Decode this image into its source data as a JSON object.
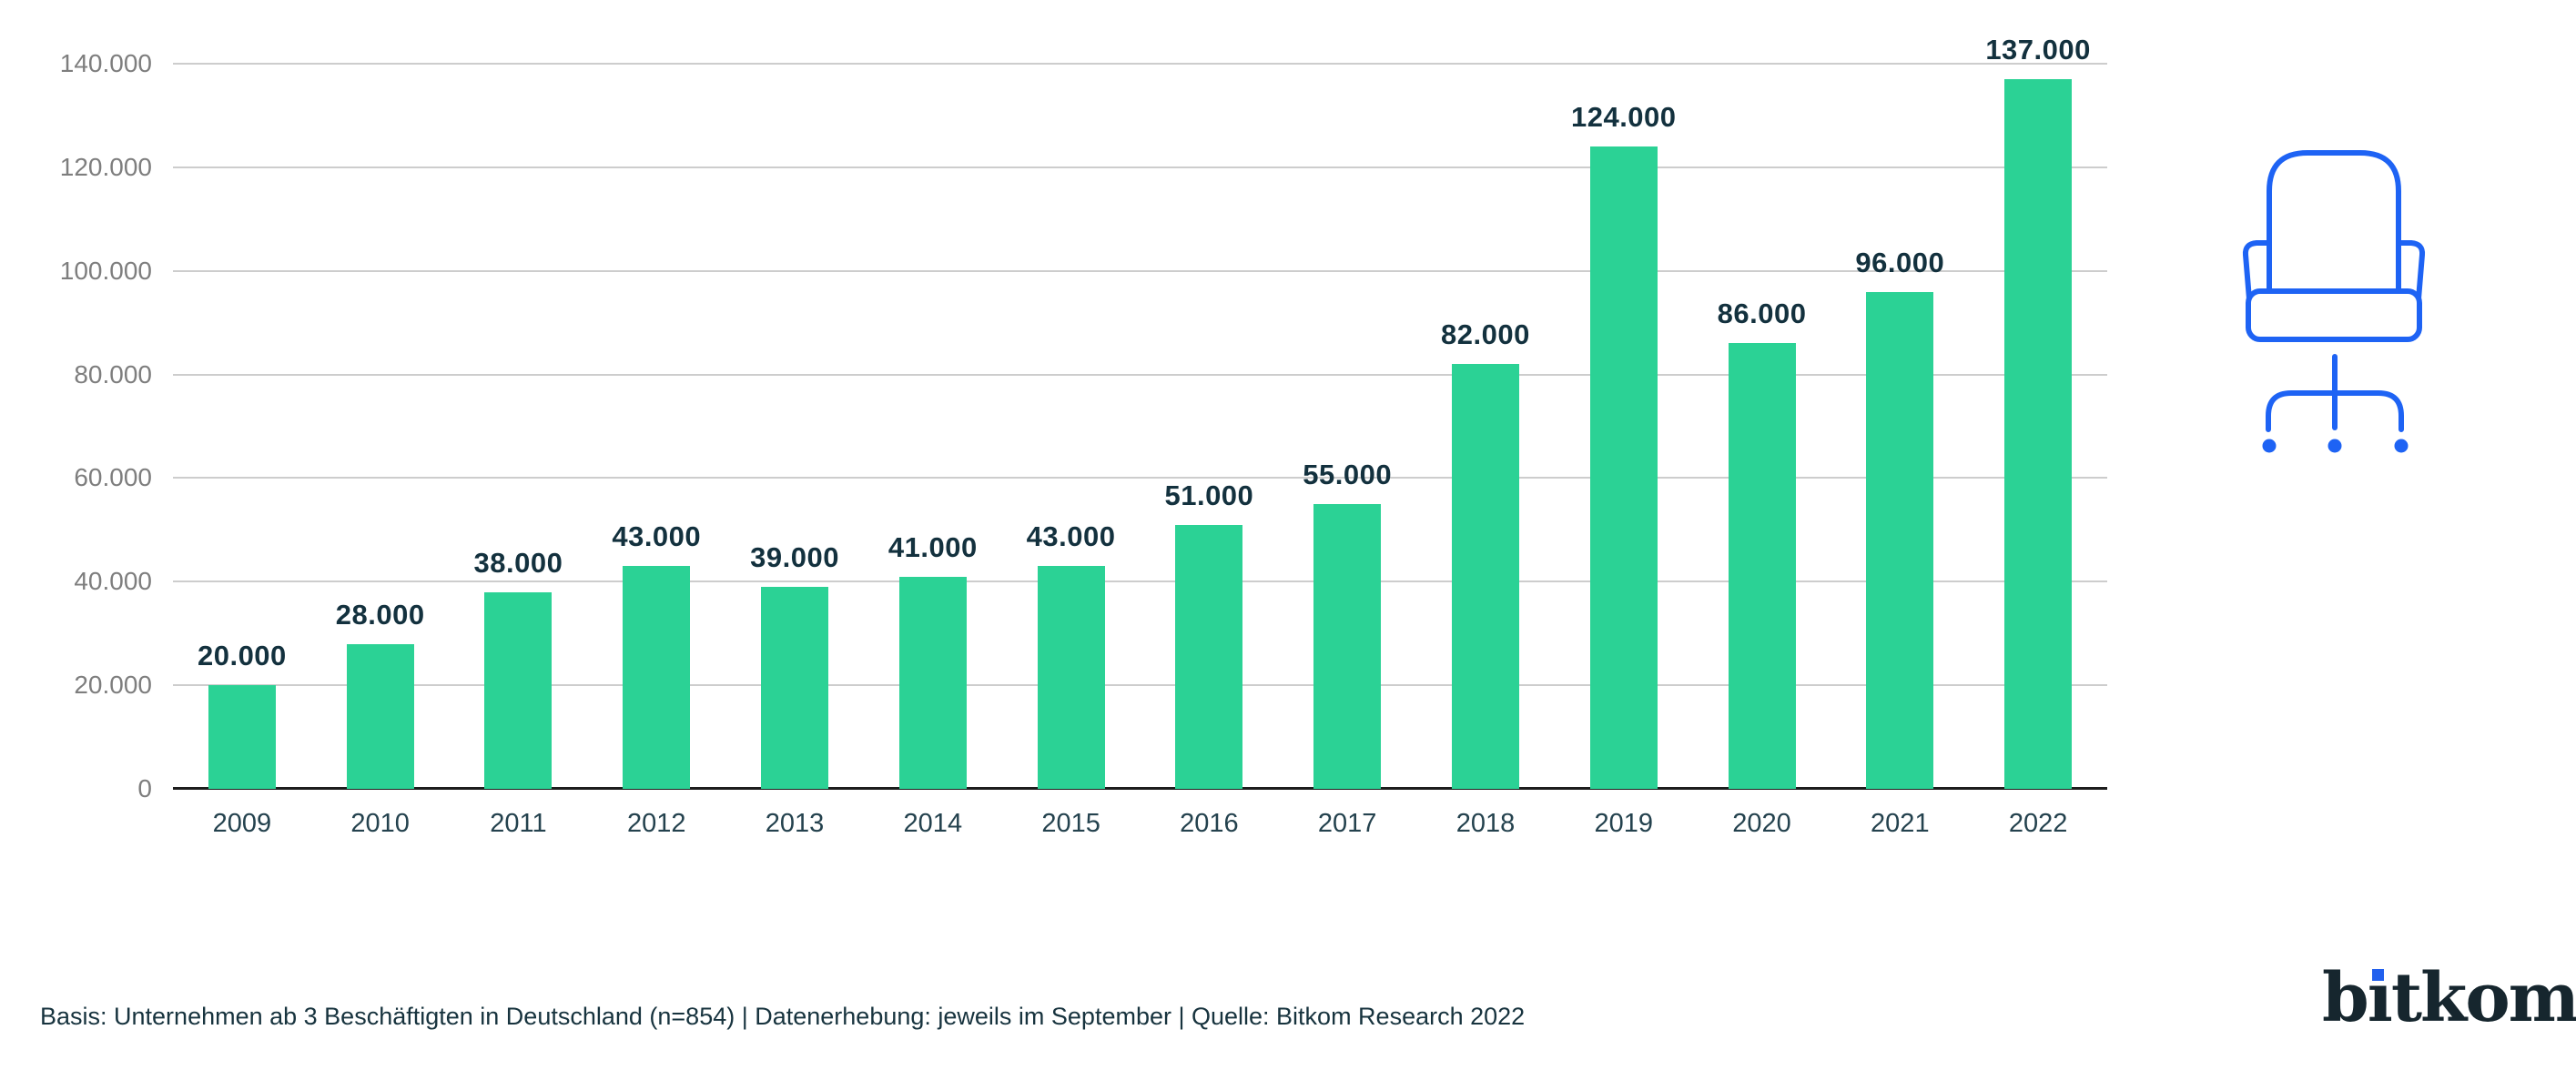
{
  "chart_data": {
    "type": "bar",
    "title": "",
    "xlabel": "",
    "ylabel": "",
    "categories": [
      "2009",
      "2010",
      "2011",
      "2012",
      "2013",
      "2014",
      "2015",
      "2016",
      "2017",
      "2018",
      "2019",
      "2020",
      "2021",
      "2022"
    ],
    "values": [
      20000,
      28000,
      38000,
      43000,
      39000,
      41000,
      43000,
      51000,
      55000,
      82000,
      124000,
      86000,
      96000,
      137000
    ],
    "value_labels": [
      "20.000",
      "28.000",
      "38.000",
      "43.000",
      "39.000",
      "41.000",
      "43.000",
      "51.000",
      "55.000",
      "82.000",
      "124.000",
      "86.000",
      "96.000",
      "137.000"
    ],
    "ylim": [
      0,
      140000
    ],
    "ytick_labels": [
      "140.000",
      "120.000",
      "100.000",
      "80.000",
      "60.000",
      "40.000",
      "20.000",
      "0"
    ],
    "grid": true,
    "legend_position": "none",
    "bar_color": "#2BD295"
  },
  "footer": {
    "note": "Basis: Unternehmen ab 3 Beschäftigten in Deutschland (n=854) | Datenerhebung: jeweils im September | Quelle: Bitkom Research 2022"
  },
  "logo": {
    "text": "bitkom",
    "pre": "b",
    "i_base": "ı",
    "post": "tkom",
    "text_color": "#16262e",
    "dot_color": "#2160ee"
  },
  "icons": {
    "office_chair": {
      "label": "office-chair-icon",
      "color": "#1E63F4"
    }
  }
}
